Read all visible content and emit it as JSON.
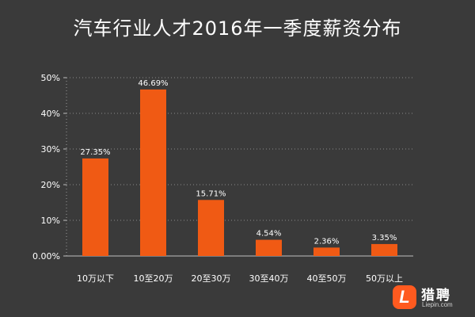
{
  "chart_data": {
    "type": "bar",
    "title": "汽车行业人才2016年一季度薪资分布",
    "categories": [
      "10万以下",
      "10至20万",
      "20至30万",
      "30至40万",
      "40至50万",
      "50万以上"
    ],
    "values": [
      27.35,
      46.69,
      15.71,
      4.54,
      2.36,
      3.35
    ],
    "data_labels": [
      "27.35%",
      "46.69%",
      "15.71%",
      "4.54%",
      "2.36%",
      "3.35%"
    ],
    "ylim": [
      0,
      50
    ],
    "yticks": [
      0,
      10,
      20,
      30,
      40,
      50
    ],
    "ytick_labels": [
      "0.00%",
      "10%",
      "20%",
      "30%",
      "40%",
      "50%"
    ],
    "grid": true,
    "bar_color": "#f05a14",
    "background_color": "#3a3a3a"
  },
  "brand": {
    "badge_letter": "L",
    "name": "猎聘",
    "url": "Liepin.com",
    "color": "#ff5a1f"
  }
}
